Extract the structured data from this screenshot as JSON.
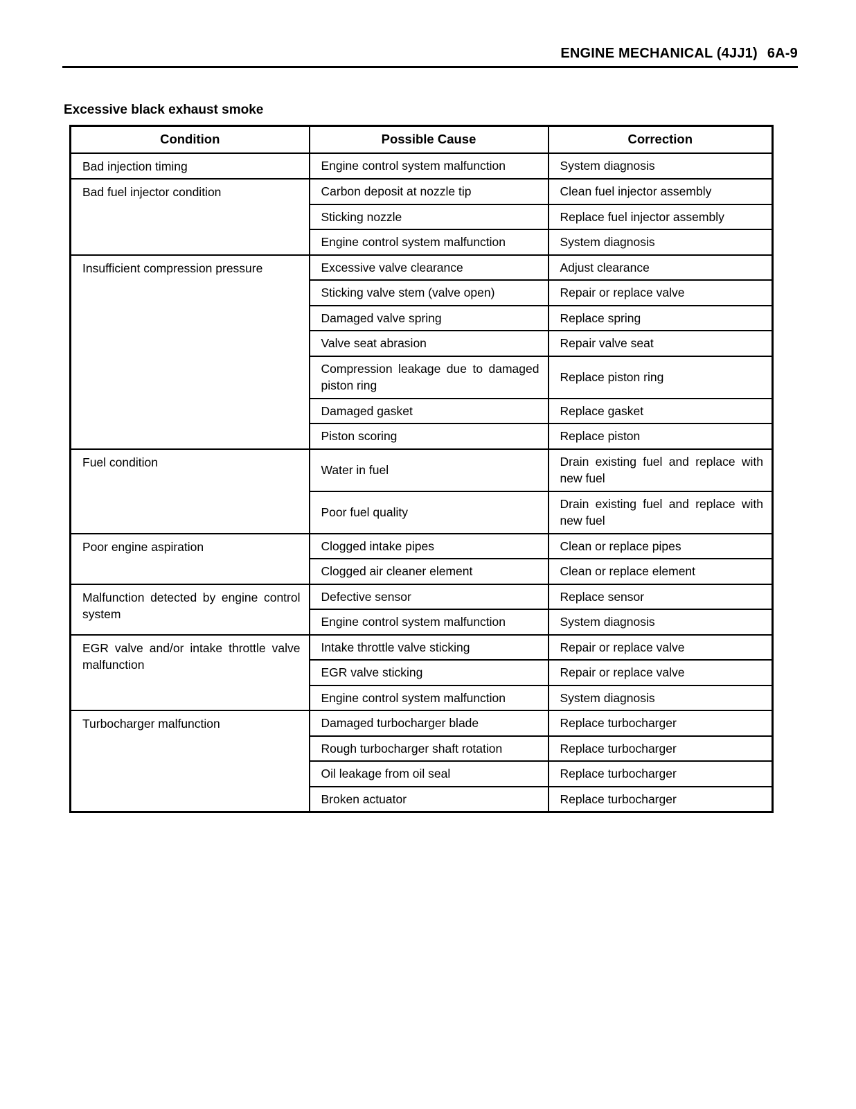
{
  "page_header": {
    "section": "ENGINE MECHANICAL (4JJ1)",
    "page_number": "6A-9"
  },
  "title": "Excessive black exhaust smoke",
  "table": {
    "columns": [
      "Condition",
      "Possible Cause",
      "Correction"
    ],
    "groups": [
      {
        "condition": "Bad injection timing",
        "rows": [
          [
            "Engine control system malfunction",
            "System diagnosis"
          ]
        ]
      },
      {
        "condition": "Bad fuel injector condition",
        "rows": [
          [
            "Carbon deposit at nozzle tip",
            "Clean fuel injector assembly"
          ],
          [
            "Sticking nozzle",
            "Replace fuel injector assembly"
          ],
          [
            "Engine control system malfunction",
            "System diagnosis"
          ]
        ]
      },
      {
        "condition": "Insufficient compression pressure",
        "rows": [
          [
            "Excessive valve clearance",
            "Adjust clearance"
          ],
          [
            "Sticking valve stem (valve open)",
            "Repair or replace valve"
          ],
          [
            "Damaged valve spring",
            "Replace spring"
          ],
          [
            "Valve seat abrasion",
            "Repair valve seat"
          ],
          [
            "Compression leakage due to damaged piston ring",
            "Replace piston ring"
          ],
          [
            "Damaged gasket",
            "Replace gasket"
          ],
          [
            "Piston scoring",
            "Replace piston"
          ]
        ]
      },
      {
        "condition": "Fuel condition",
        "rows": [
          [
            "Water in fuel",
            "Drain existing fuel and replace with new fuel"
          ],
          [
            "Poor fuel quality",
            "Drain existing fuel and replace with new fuel"
          ]
        ]
      },
      {
        "condition": "Poor engine aspiration",
        "rows": [
          [
            "Clogged intake pipes",
            "Clean or replace pipes"
          ],
          [
            "Clogged air cleaner element",
            "Clean or replace element"
          ]
        ]
      },
      {
        "condition": "Malfunction detected by engine control system",
        "rows": [
          [
            "Defective sensor",
            "Replace sensor"
          ],
          [
            "Engine control system malfunction",
            "System diagnosis"
          ]
        ]
      },
      {
        "condition": "EGR valve and/or intake throttle valve malfunction",
        "rows": [
          [
            "Intake throttle valve sticking",
            "Repair or replace valve"
          ],
          [
            "EGR valve sticking",
            "Repair or replace valve"
          ],
          [
            "Engine control system malfunction",
            "System diagnosis"
          ]
        ]
      },
      {
        "condition": "Turbocharger malfunction",
        "rows": [
          [
            "Damaged turbocharger blade",
            "Replace turbocharger"
          ],
          [
            "Rough turbocharger shaft rotation",
            "Replace turbocharger"
          ],
          [
            "Oil leakage from oil seal",
            "Replace turbocharger"
          ],
          [
            "Broken actuator",
            "Replace turbocharger"
          ]
        ]
      }
    ]
  },
  "colors": {
    "text": "#000000",
    "background": "#ffffff",
    "border": "#000000"
  }
}
